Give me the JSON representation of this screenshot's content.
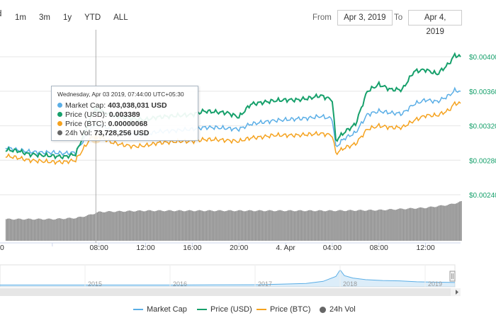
{
  "toolbar": {
    "zoom_cut": "d",
    "zoom_buttons": [
      "1m",
      "3m",
      "1y",
      "YTD",
      "ALL"
    ],
    "from_label": "From",
    "from_value": "Apr 3, 2019",
    "to_label": "To",
    "to_value": "Apr 4, 2019"
  },
  "tooltip": {
    "header": "Wednesday, Apr 03 2019, 07:44:00 UTC+05:30",
    "rows": [
      {
        "label": "Market Cap:",
        "value": "403,038,031 USD",
        "color": "#5aaee6"
      },
      {
        "label": "Price (USD):",
        "value": "0.003389",
        "color": "#16a06b"
      },
      {
        "label": "Price (BTC):",
        "value": "0.00000068",
        "color": "#f5a21e"
      },
      {
        "label": "24h Vol:",
        "value": "73,728,256 USD",
        "color": "#666666"
      }
    ]
  },
  "legend": [
    {
      "label": "Market Cap",
      "color": "#5aaee6",
      "kind": "line"
    },
    {
      "label": "Price (USD)",
      "color": "#16a06b",
      "kind": "line"
    },
    {
      "label": "Price (BTC)",
      "color": "#f5a21e",
      "kind": "line"
    },
    {
      "label": "24h Vol",
      "color": "#666666",
      "kind": "dot"
    }
  ],
  "colors": {
    "market_cap": "#5aaee6",
    "price_usd": "#16a06b",
    "price_btc": "#f5a21e",
    "volume": "#888888",
    "navigator": "#9ccbee"
  },
  "chart_data": {
    "type": "line",
    "x_ticks": [
      "0",
      "08:00",
      "12:00",
      "16:00",
      "20:00",
      "4. Apr",
      "04:00",
      "08:00",
      "12:00"
    ],
    "x_range_hours": [
      0,
      39
    ],
    "x_tick_hours": [
      4,
      8,
      12,
      16,
      20,
      24,
      28,
      32,
      36
    ],
    "y_ticks": [
      "$0.00400",
      "$0.00360",
      "$0.00320",
      "$0.00280",
      "$0.00240"
    ],
    "y_tick_values": [
      0.004,
      0.0036,
      0.0032,
      0.0028,
      0.0024
    ],
    "ylim": [
      0.0024,
      0.0041
    ],
    "grid": true,
    "crosshair_hour": 7.73,
    "series": [
      {
        "name": "Price (USD)",
        "x": [
          0,
          1,
          2,
          3,
          4,
          5,
          6,
          7,
          7.5,
          8,
          9,
          10,
          11,
          12,
          13,
          14,
          15,
          16,
          17,
          18,
          19,
          20,
          21,
          22,
          23,
          24,
          25,
          26,
          27,
          28,
          28.3,
          29,
          30,
          31,
          32,
          33,
          34,
          35,
          36,
          37,
          38,
          38.5,
          39
        ],
        "values": [
          0.00292,
          0.00291,
          0.00287,
          0.00286,
          0.00285,
          0.00284,
          0.00287,
          0.0032,
          0.00335,
          0.00338,
          0.00332,
          0.0033,
          0.00328,
          0.00327,
          0.0033,
          0.00331,
          0.00332,
          0.00333,
          0.00337,
          0.00336,
          0.00335,
          0.0033,
          0.00345,
          0.00347,
          0.00349,
          0.0035,
          0.0035,
          0.00352,
          0.00355,
          0.0035,
          0.00303,
          0.00312,
          0.00322,
          0.0036,
          0.00368,
          0.00362,
          0.00362,
          0.00383,
          0.00385,
          0.0038,
          0.00392,
          0.00402,
          0.004
        ]
      },
      {
        "name": "Market Cap",
        "x": [
          0,
          1,
          2,
          3,
          4,
          5,
          6,
          7,
          7.5,
          8,
          9,
          10,
          11,
          12,
          13,
          14,
          15,
          16,
          17,
          18,
          19,
          20,
          21,
          22,
          23,
          24,
          25,
          26,
          27,
          28,
          28.3,
          29,
          30,
          31,
          32,
          33,
          34,
          35,
          36,
          37,
          38,
          38.5,
          39
        ],
        "values": [
          0.00295,
          0.00292,
          0.0029,
          0.00289,
          0.00289,
          0.00288,
          0.00289,
          0.0031,
          0.0032,
          0.00322,
          0.00316,
          0.00312,
          0.00311,
          0.0031,
          0.00313,
          0.00314,
          0.00315,
          0.00316,
          0.00318,
          0.00318,
          0.00317,
          0.00316,
          0.00322,
          0.00324,
          0.00326,
          0.00327,
          0.00328,
          0.00329,
          0.00331,
          0.00328,
          0.00295,
          0.00305,
          0.00312,
          0.00333,
          0.00337,
          0.00335,
          0.00334,
          0.00345,
          0.0035,
          0.00348,
          0.00355,
          0.00361,
          0.0036
        ]
      },
      {
        "name": "Price (BTC)",
        "x": [
          0,
          1,
          2,
          3,
          4,
          5,
          6,
          7,
          7.5,
          8,
          9,
          10,
          11,
          12,
          13,
          14,
          15,
          16,
          17,
          18,
          19,
          20,
          21,
          22,
          23,
          24,
          25,
          26,
          27,
          28,
          28.3,
          29,
          30,
          31,
          32,
          33,
          34,
          35,
          36,
          37,
          38,
          38.5,
          39
        ],
        "values": [
          0.00285,
          0.00283,
          0.0028,
          0.00279,
          0.00278,
          0.00278,
          0.0028,
          0.003,
          0.00309,
          0.00308,
          0.00301,
          0.00298,
          0.00296,
          0.00297,
          0.003,
          0.00301,
          0.00302,
          0.00302,
          0.00304,
          0.00304,
          0.00303,
          0.00302,
          0.00306,
          0.00307,
          0.00309,
          0.00309,
          0.00309,
          0.0031,
          0.00311,
          0.00309,
          0.00288,
          0.00294,
          0.00299,
          0.00316,
          0.0032,
          0.00318,
          0.00318,
          0.00326,
          0.00332,
          0.00332,
          0.00338,
          0.00346,
          0.00346
        ]
      }
    ],
    "volume": {
      "name": "24h Vol",
      "x": [
        0,
        4,
        6,
        7,
        8,
        12,
        16,
        20,
        24,
        28,
        32,
        36,
        38,
        39
      ],
      "relative_height": [
        0.36,
        0.36,
        0.38,
        0.42,
        0.48,
        0.5,
        0.5,
        0.5,
        0.5,
        0.5,
        0.51,
        0.55,
        0.6,
        0.65
      ]
    },
    "navigator": {
      "x_labels": [
        "2015",
        "2016",
        "2017",
        "2018",
        "2019"
      ],
      "x_years": [
        2015,
        2016,
        2017,
        2018,
        2019
      ],
      "x_range_years": [
        2014.0,
        2019.35
      ],
      "x": [
        2014.0,
        2014.5,
        2015.0,
        2015.5,
        2016.0,
        2016.5,
        2017.0,
        2017.3,
        2017.6,
        2017.8,
        2017.95,
        2018.0,
        2018.05,
        2018.15,
        2018.3,
        2018.5,
        2018.7,
        2018.9,
        2019.1,
        2019.35
      ],
      "values": [
        0.02,
        0.02,
        0.02,
        0.02,
        0.02,
        0.03,
        0.04,
        0.08,
        0.12,
        0.25,
        0.55,
        0.95,
        0.6,
        0.45,
        0.35,
        0.3,
        0.28,
        0.22,
        0.2,
        0.18
      ]
    }
  }
}
